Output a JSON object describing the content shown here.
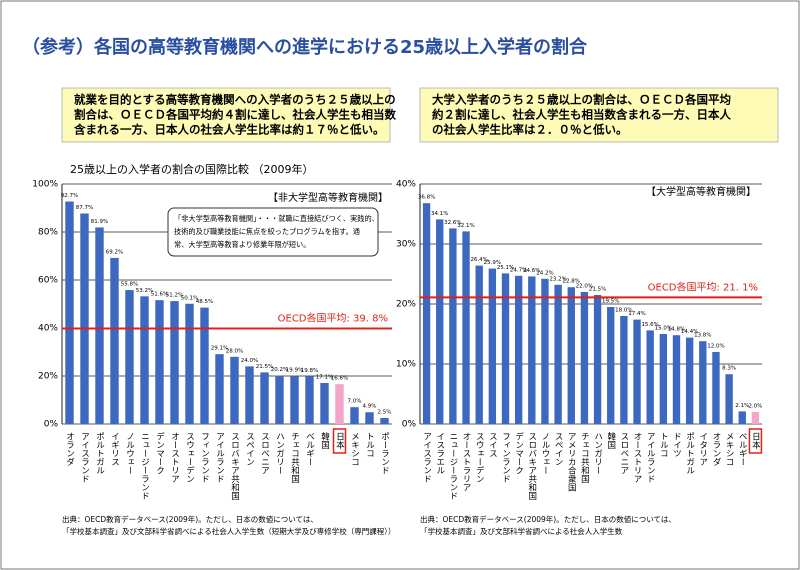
{
  "title": "（参考）各国の高等教育機関への進学における25歳以上入学者の割合",
  "chart_data": [
    {
      "type": "bar",
      "summary": [
        "就業を目的とする高等教育機関への入学者のうち２５歳以上の",
        "割合は、ＯＥＣＤ各国平均約４割に達し、社会人学生も相当数",
        "含まれる一方、日本人の社会人学生比率は約１７％と低い。"
      ],
      "subtitle": "25歳以上の入学者の割合の国際比較 （2009年）",
      "label": "【非大学型高等教育機関】",
      "note": [
        "「非大学型高等教育機関」・・・就職に直接結びつく、実践的、",
        "技術的及び職業技能に焦点を絞ったプログラムを指す。通",
        "常、大学型高等教育より修業年限が短い。"
      ],
      "categories": [
        "オランダ",
        "アイスランド",
        "ポルトガル",
        "イギリス",
        "ノルウェー",
        "ニュージーランド",
        "デンマーク",
        "オーストリア",
        "スウェーデン",
        "フィンランド",
        "アイルランド",
        "スロバキア共和国",
        "スペイン",
        "スロベニア",
        "ハンガリー",
        "チェコ共和国",
        "ベルギー",
        "韓国",
        "日本",
        "メキシコ",
        "トルコ",
        "ポーランド"
      ],
      "values": [
        92.7,
        87.7,
        81.9,
        69.2,
        55.8,
        53.2,
        51.6,
        51.2,
        50.1,
        48.5,
        29.1,
        28.0,
        24.0,
        21.5,
        20.2,
        19.9,
        19.8,
        17.1,
        16.6,
        7.0,
        4.9,
        2.5
      ],
      "value_labels": [
        "92.7%",
        "87.7%",
        "81.9%",
        "69.2%",
        "55.8%",
        "53.2%",
        "51.6%",
        "51.2%",
        "50.1%",
        "48.5%",
        "29.1%",
        "28.0%",
        "24.0%",
        "21.5%",
        "20.2%",
        "19.9%",
        "19.8%",
        "17.1%",
        "16.6%",
        "7.0%",
        "4.9%",
        "2.5%"
      ],
      "color": "#3d68bf",
      "highlight_category": "日本",
      "highlight_color": "#f5a6c8",
      "reference": {
        "value": 39.8,
        "label": "OECD各国平均: 39. 8%",
        "color": "#e0201b"
      },
      "ylim": [
        0,
        100
      ],
      "yticks": [
        {
          "value": 0,
          "label": "0%"
        },
        {
          "value": 20,
          "label": "20%"
        },
        {
          "value": 40,
          "label": "40%"
        },
        {
          "value": 60,
          "label": "60%"
        },
        {
          "value": 80,
          "label": "80%"
        },
        {
          "value": 100,
          "label": "100%"
        }
      ],
      "grid": true,
      "source": [
        "出典：OECD教育データベース(2009年)。ただし、日本の数値については、",
        "「学校基本調査」及び文部科学省調べによる社会人入学生数（短期大学及び専修学校（専門課程））"
      ]
    },
    {
      "type": "bar",
      "summary": [
        "大学入学者のうち２５歳以上の割合は、ＯＥＣＤ各国平均",
        "約２割に達し、社会人学生も相当数含まれる一方、日本人",
        "の社会人学生比率は２．０％と低い。"
      ],
      "label": "【大学型高等教育機関】",
      "categories": [
        "アイスランド",
        "イスラエル",
        "ニュージーランド",
        "オーストラリア",
        "スウェーデン",
        "スイス",
        "フィンランド",
        "デンマーク",
        "スロバキア共和国",
        "ノルウェー",
        "スペイン",
        "アメリカ合衆国",
        "チェコ共和国",
        "ハンガリー",
        "韓国",
        "スロベニア",
        "オーストリア",
        "アイルランド",
        "トルコ",
        "ドイツ",
        "ポルトガル",
        "イタリア",
        "オランダ",
        "メキシコ",
        "ベルギー",
        "日本"
      ],
      "values": [
        36.8,
        34.1,
        32.6,
        32.1,
        26.4,
        25.9,
        25.1,
        24.7,
        24.6,
        24.2,
        23.2,
        22.8,
        22.0,
        21.5,
        19.5,
        18.0,
        17.4,
        15.6,
        15.0,
        14.8,
        14.4,
        13.8,
        12.0,
        8.3,
        2.1,
        2.0
      ],
      "value_labels": [
        "36.8%",
        "34.1%",
        "32.6%",
        "32.1%",
        "26.4%",
        "25.9%",
        "25.1%",
        "24.7%",
        "24.6%",
        "24.2%",
        "23.2%",
        "22.8%",
        "22.0%",
        "21.5%",
        "19.5%",
        "18.0%",
        "17.4%",
        "15.6%",
        "15.0%",
        "14.8%",
        "14.4%",
        "13.8%",
        "12.0%",
        "8.3%",
        "2.1%",
        "2.0%"
      ],
      "color": "#3d68bf",
      "highlight_category": "日本",
      "highlight_color": "#f5a6c8",
      "reference": {
        "value": 21.1,
        "label": "OECD各国平均: 21. 1%",
        "color": "#e0201b"
      },
      "ylim": [
        0,
        40
      ],
      "yticks": [
        {
          "value": 0,
          "label": "0%"
        },
        {
          "value": 10,
          "label": "10%"
        },
        {
          "value": 20,
          "label": "20%"
        },
        {
          "value": 30,
          "label": "30%"
        },
        {
          "value": 40,
          "label": "40%"
        }
      ],
      "grid": true,
      "source": [
        "出典：OECD教育データベース(2009年)。ただし、日本の数値については、",
        "「学校基本調査」及び文部科学省調べによる社会人入学生数"
      ]
    }
  ]
}
